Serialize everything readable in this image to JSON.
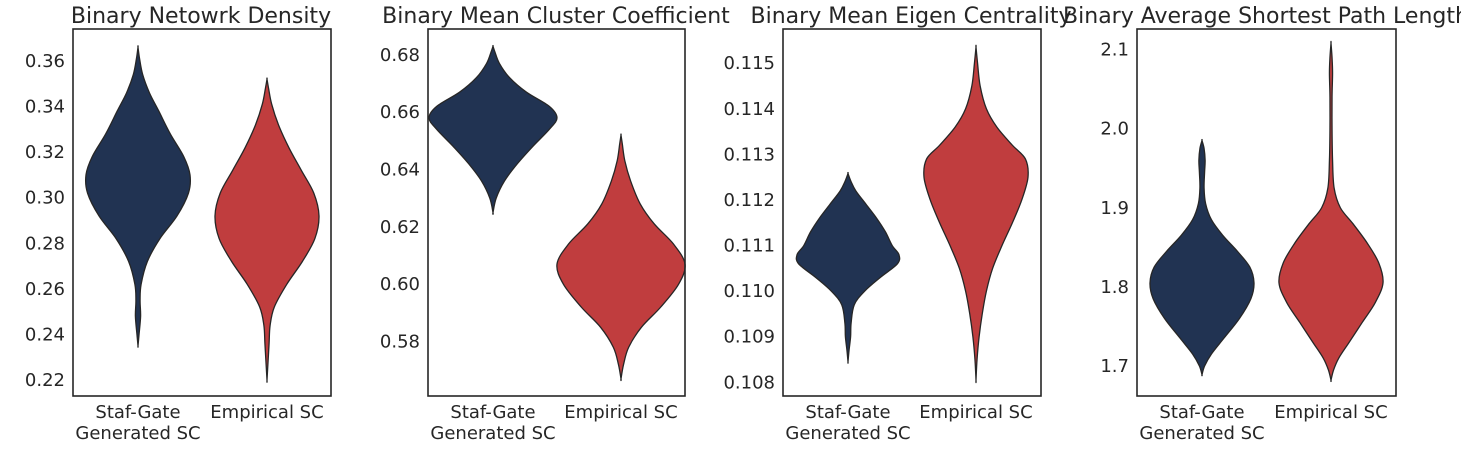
{
  "colors": {
    "generated": "#213352",
    "empirical": "#c03d3e",
    "axis": "#262626"
  },
  "chart_data": [
    {
      "type": "violin",
      "title": "Binary Netowrk Density",
      "categories": [
        "Staf-Gate\nGenerated SC",
        "Empirical SC"
      ],
      "ylim": [
        0.213,
        0.374
      ],
      "yticks": [
        0.22,
        0.24,
        0.26,
        0.28,
        0.3,
        0.32,
        0.34,
        0.36
      ],
      "ytick_labels": [
        "0.22",
        "0.24",
        "0.26",
        "0.28",
        "0.30",
        "0.32",
        "0.34",
        "0.36"
      ],
      "series": [
        {
          "name": "Staf-Gate Generated SC",
          "profile": [
            [
              0.235,
              0.0
            ],
            [
              0.24,
              0.02
            ],
            [
              0.248,
              0.05
            ],
            [
              0.255,
              0.04
            ],
            [
              0.262,
              0.06
            ],
            [
              0.272,
              0.18
            ],
            [
              0.282,
              0.42
            ],
            [
              0.292,
              0.75
            ],
            [
              0.302,
              0.97
            ],
            [
              0.31,
              1.0
            ],
            [
              0.318,
              0.88
            ],
            [
              0.328,
              0.62
            ],
            [
              0.338,
              0.4
            ],
            [
              0.346,
              0.22
            ],
            [
              0.354,
              0.09
            ],
            [
              0.361,
              0.03
            ],
            [
              0.366,
              0.0
            ]
          ]
        },
        {
          "name": "Empirical SC",
          "profile": [
            [
              0.22,
              0.0
            ],
            [
              0.228,
              0.02
            ],
            [
              0.236,
              0.04
            ],
            [
              0.244,
              0.06
            ],
            [
              0.252,
              0.14
            ],
            [
              0.262,
              0.38
            ],
            [
              0.272,
              0.68
            ],
            [
              0.282,
              0.92
            ],
            [
              0.292,
              1.0
            ],
            [
              0.302,
              0.9
            ],
            [
              0.312,
              0.66
            ],
            [
              0.322,
              0.42
            ],
            [
              0.332,
              0.22
            ],
            [
              0.341,
              0.09
            ],
            [
              0.348,
              0.03
            ],
            [
              0.352,
              0.0
            ]
          ]
        }
      ]
    },
    {
      "type": "violin",
      "title": "Binary Mean Cluster Coefficient",
      "categories": [
        "Staf-Gate\nGenerated SC",
        "Empirical SC"
      ],
      "ylim": [
        0.561,
        0.689
      ],
      "yticks": [
        0.58,
        0.6,
        0.62,
        0.64,
        0.66,
        0.68
      ],
      "ytick_labels": [
        "0.58",
        "0.60",
        "0.62",
        "0.64",
        "0.66",
        "0.68"
      ],
      "series": [
        {
          "name": "Staf-Gate Generated SC",
          "profile": [
            [
              0.625,
              0.0
            ],
            [
              0.63,
              0.05
            ],
            [
              0.636,
              0.18
            ],
            [
              0.642,
              0.38
            ],
            [
              0.648,
              0.62
            ],
            [
              0.654,
              0.88
            ],
            [
              0.658,
              1.0
            ],
            [
              0.662,
              0.88
            ],
            [
              0.667,
              0.52
            ],
            [
              0.672,
              0.26
            ],
            [
              0.677,
              0.1
            ],
            [
              0.681,
              0.03
            ],
            [
              0.683,
              0.0
            ]
          ]
        },
        {
          "name": "Empirical SC",
          "profile": [
            [
              0.567,
              0.0
            ],
            [
              0.572,
              0.04
            ],
            [
              0.578,
              0.12
            ],
            [
              0.585,
              0.32
            ],
            [
              0.592,
              0.62
            ],
            [
              0.6,
              0.9
            ],
            [
              0.607,
              1.0
            ],
            [
              0.614,
              0.82
            ],
            [
              0.621,
              0.52
            ],
            [
              0.628,
              0.3
            ],
            [
              0.636,
              0.15
            ],
            [
              0.643,
              0.06
            ],
            [
              0.649,
              0.02
            ],
            [
              0.652,
              0.0
            ]
          ]
        }
      ]
    },
    {
      "type": "violin",
      "title": "Binary Mean Eigen Centrality",
      "categories": [
        "Staf-Gate\nGenerated SC",
        "Empirical SC"
      ],
      "ylim": [
        0.1077,
        0.11575
      ],
      "yticks": [
        0.108,
        0.109,
        0.11,
        0.111,
        0.112,
        0.113,
        0.114,
        0.115
      ],
      "ytick_labels": [
        "0.108",
        "0.109",
        "0.110",
        "0.111",
        "0.112",
        "0.113",
        "0.114",
        "0.115"
      ],
      "series": [
        {
          "name": "Staf-Gate Generated SC",
          "profile": [
            [
              0.10845,
              0.0
            ],
            [
              0.1087,
              0.02
            ],
            [
              0.109,
              0.05
            ],
            [
              0.1093,
              0.06
            ],
            [
              0.1097,
              0.12
            ],
            [
              0.11,
              0.32
            ],
            [
              0.1103,
              0.62
            ],
            [
              0.1106,
              0.95
            ],
            [
              0.1108,
              0.98
            ],
            [
              0.111,
              0.85
            ],
            [
              0.1113,
              0.72
            ],
            [
              0.1116,
              0.55
            ],
            [
              0.1119,
              0.35
            ],
            [
              0.1122,
              0.15
            ],
            [
              0.1124,
              0.06
            ],
            [
              0.11258,
              0.0
            ]
          ]
        },
        {
          "name": "Empirical SC",
          "profile": [
            [
              0.10805,
              0.0
            ],
            [
              0.1085,
              0.02
            ],
            [
              0.109,
              0.06
            ],
            [
              0.1095,
              0.12
            ],
            [
              0.11,
              0.2
            ],
            [
              0.1105,
              0.32
            ],
            [
              0.111,
              0.5
            ],
            [
              0.1115,
              0.7
            ],
            [
              0.112,
              0.88
            ],
            [
              0.1125,
              1.0
            ],
            [
              0.1129,
              0.95
            ],
            [
              0.1132,
              0.7
            ],
            [
              0.1136,
              0.4
            ],
            [
              0.114,
              0.2
            ],
            [
              0.1145,
              0.08
            ],
            [
              0.115,
              0.03
            ],
            [
              0.11535,
              0.0
            ]
          ]
        }
      ]
    },
    {
      "type": "violin",
      "title": "Binary Average Shortest Path Length",
      "categories": [
        "Staf-Gate\nGenerated SC",
        "Empirical SC"
      ],
      "ylim": [
        1.662,
        2.126
      ],
      "yticks": [
        1.7,
        1.8,
        1.9,
        2.0,
        2.1
      ],
      "ytick_labels": [
        "1.7",
        "1.8",
        "1.9",
        "2.0",
        "2.1"
      ],
      "series": [
        {
          "name": "Staf-Gate Generated SC",
          "profile": [
            [
              1.689,
              0.0
            ],
            [
              1.7,
              0.05
            ],
            [
              1.715,
              0.18
            ],
            [
              1.735,
              0.42
            ],
            [
              1.76,
              0.72
            ],
            [
              1.785,
              0.94
            ],
            [
              1.805,
              1.0
            ],
            [
              1.825,
              0.92
            ],
            [
              1.845,
              0.68
            ],
            [
              1.865,
              0.4
            ],
            [
              1.885,
              0.18
            ],
            [
              1.905,
              0.07
            ],
            [
              1.925,
              0.04
            ],
            [
              1.945,
              0.05
            ],
            [
              1.96,
              0.06
            ],
            [
              1.975,
              0.04
            ],
            [
              1.985,
              0.0
            ]
          ]
        },
        {
          "name": "Empirical SC",
          "profile": [
            [
              1.682,
              0.0
            ],
            [
              1.695,
              0.05
            ],
            [
              1.71,
              0.15
            ],
            [
              1.73,
              0.35
            ],
            [
              1.755,
              0.6
            ],
            [
              1.78,
              0.85
            ],
            [
              1.805,
              1.0
            ],
            [
              1.83,
              0.92
            ],
            [
              1.855,
              0.7
            ],
            [
              1.88,
              0.42
            ],
            [
              1.9,
              0.18
            ],
            [
              1.925,
              0.06
            ],
            [
              1.96,
              0.03
            ],
            [
              2.0,
              0.02
            ],
            [
              2.04,
              0.02
            ],
            [
              2.07,
              0.03
            ],
            [
              2.09,
              0.02
            ],
            [
              2.108,
              0.0
            ]
          ]
        }
      ]
    }
  ]
}
